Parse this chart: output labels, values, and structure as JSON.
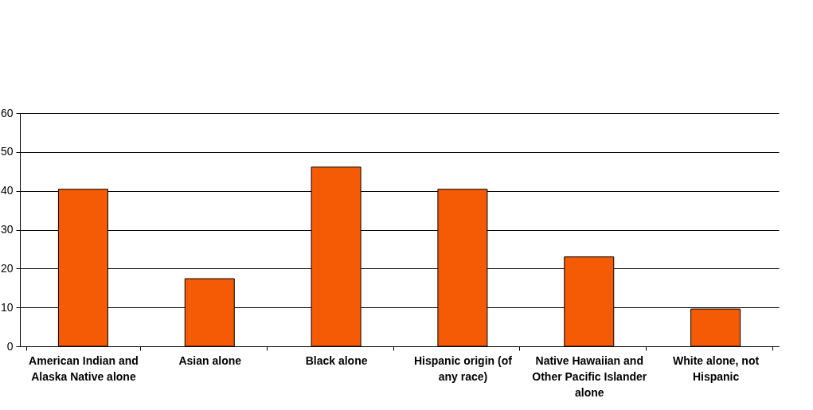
{
  "chart_data": {
    "type": "bar",
    "categories": [
      "American Indian and Alaska Native alone",
      "Asian alone",
      "Black alone",
      "Hispanic origin (of any race)",
      "Native Hawaiian and Other Pacific Islander alone",
      "White alone, not Hispanic"
    ],
    "values": [
      40.4,
      17.4,
      46.1,
      40.4,
      23.0,
      9.6
    ],
    "color": "#f55a05",
    "ylim": [
      0,
      60
    ],
    "yticks": [
      0,
      10,
      20,
      30,
      40,
      50,
      60
    ],
    "grid": "y"
  }
}
